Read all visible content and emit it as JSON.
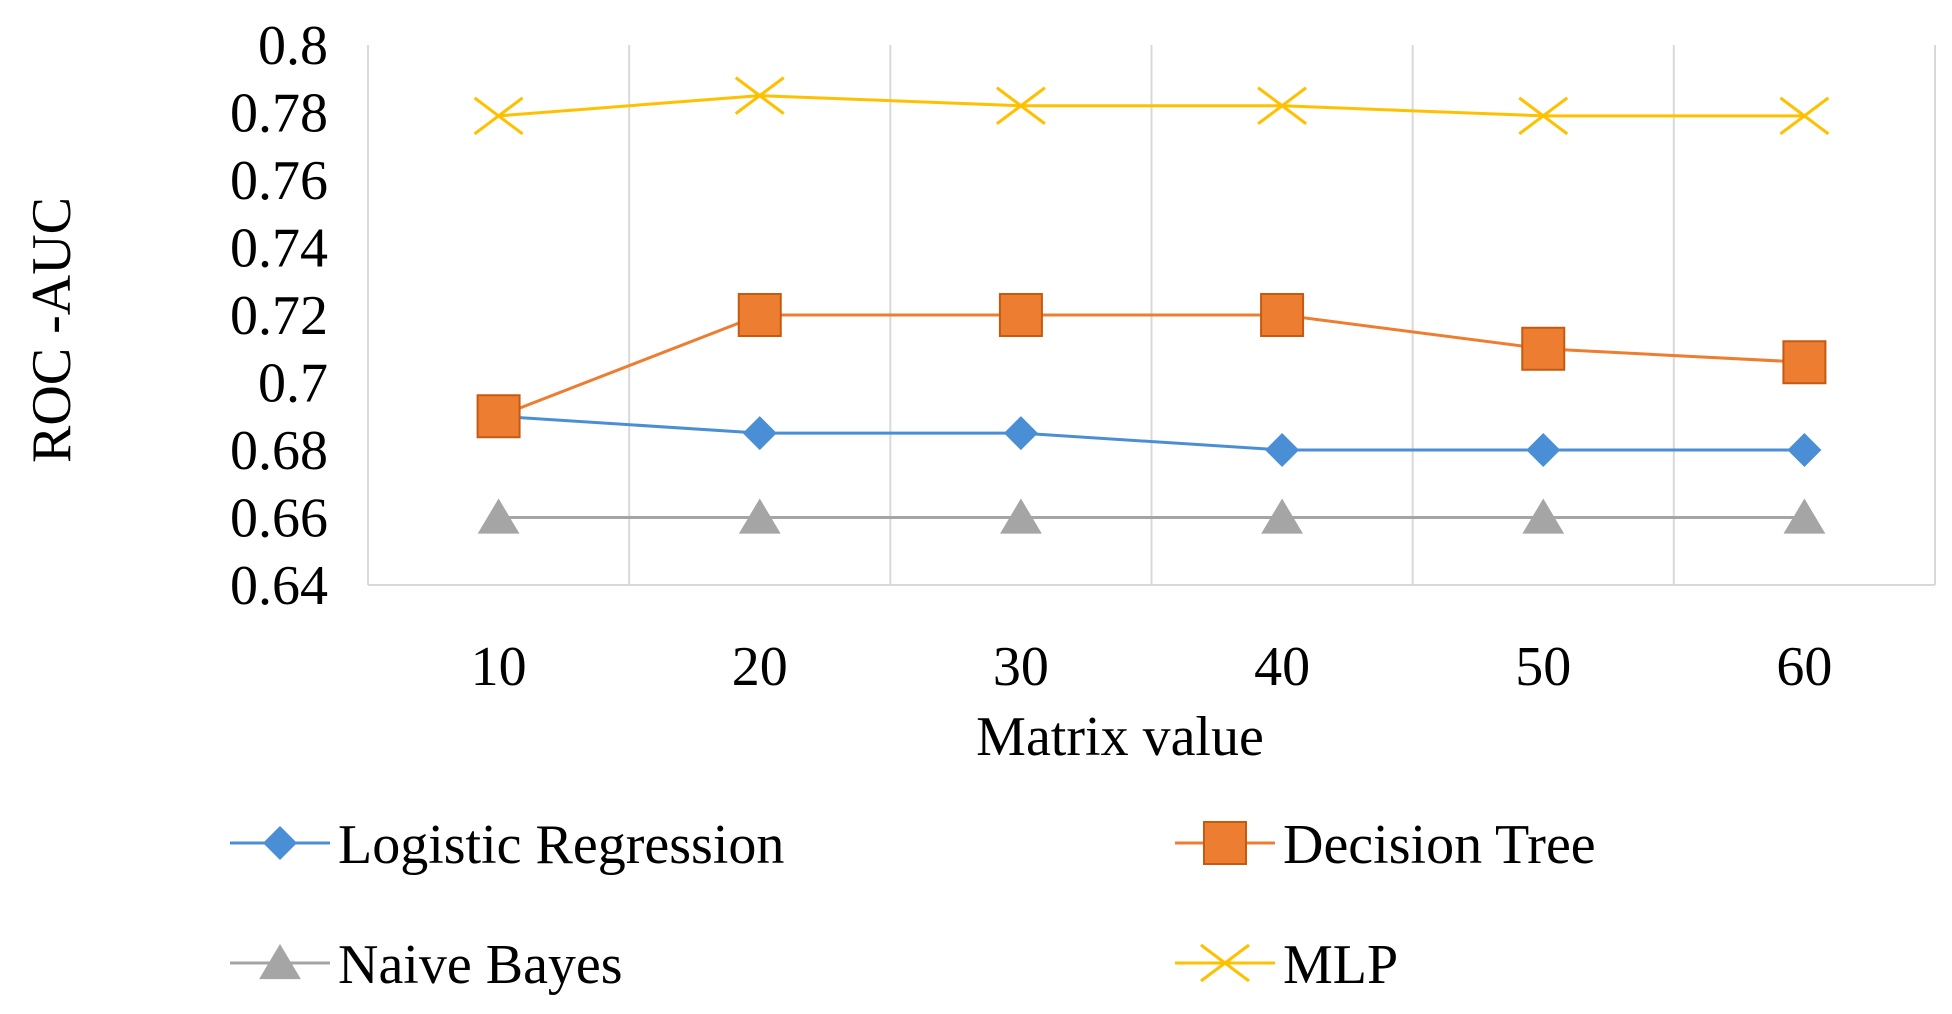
{
  "chart_data": {
    "type": "line",
    "title": "",
    "xlabel": "Matrix value",
    "ylabel": "ROC -AUC",
    "categories": [
      "10",
      "20",
      "30",
      "40",
      "50",
      "60"
    ],
    "ylim": [
      0.64,
      0.8
    ],
    "yticks": [
      "0.64",
      "0.66",
      "0.68",
      "0.7",
      "0.72",
      "0.74",
      "0.76",
      "0.78",
      "0.8"
    ],
    "grid": "vertical",
    "legend_position": "bottom",
    "series": [
      {
        "name": "Logistic Regression",
        "values": [
          0.69,
          0.685,
          0.685,
          0.68,
          0.68,
          0.68
        ],
        "color": "#4a8fd6",
        "marker": "diamond"
      },
      {
        "name": "Decision Tree",
        "values": [
          0.69,
          0.72,
          0.72,
          0.72,
          0.71,
          0.706
        ],
        "color": "#ed7d31",
        "marker": "square"
      },
      {
        "name": "Naive Bayes",
        "values": [
          0.66,
          0.66,
          0.66,
          0.66,
          0.66,
          0.66
        ],
        "color": "#a5a5a5",
        "marker": "triangle"
      },
      {
        "name": "MLP",
        "values": [
          0.779,
          0.785,
          0.782,
          0.782,
          0.779,
          0.779
        ],
        "color": "#ffc000",
        "marker": "x"
      }
    ]
  }
}
